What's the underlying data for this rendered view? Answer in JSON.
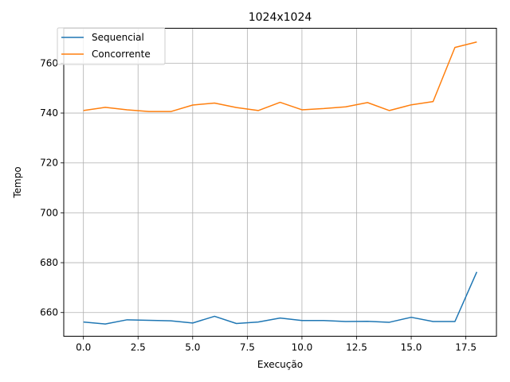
{
  "chart_data": {
    "type": "line",
    "title": "1024x1024",
    "xlabel": "Execução",
    "ylabel": "Tempo",
    "xlim": [
      -0.9,
      18.9
    ],
    "ylim": [
      650.5,
      774
    ],
    "x_ticks": [
      0.0,
      2.5,
      5.0,
      7.5,
      10.0,
      12.5,
      15.0,
      17.5
    ],
    "x_tick_labels": [
      "0.0",
      "2.5",
      "5.0",
      "7.5",
      "10.0",
      "12.5",
      "15.0",
      "17.5"
    ],
    "y_ticks": [
      660,
      680,
      700,
      720,
      740,
      760
    ],
    "y_tick_labels": [
      "660",
      "680",
      "700",
      "720",
      "740",
      "760"
    ],
    "grid": true,
    "legend_position": "top-left",
    "x": [
      0,
      1,
      2,
      3,
      4,
      5,
      6,
      7,
      8,
      9,
      10,
      11,
      12,
      13,
      14,
      15,
      16,
      17,
      18
    ],
    "series": [
      {
        "name": "Sequencial",
        "color": "#1f77b4",
        "values": [
          656.2,
          655.4,
          657.1,
          656.9,
          656.7,
          655.8,
          658.5,
          655.6,
          656.2,
          657.8,
          656.8,
          656.8,
          656.4,
          656.5,
          656.1,
          658.1,
          656.4,
          656.4,
          676.3
        ]
      },
      {
        "name": "Concorrente",
        "color": "#ff7f0e",
        "values": [
          741.0,
          742.3,
          741.3,
          740.6,
          740.6,
          743.2,
          744.0,
          742.2,
          741.0,
          744.3,
          741.3,
          741.8,
          742.5,
          744.2,
          741.0,
          743.3,
          744.6,
          766.3,
          768.5
        ]
      }
    ]
  }
}
